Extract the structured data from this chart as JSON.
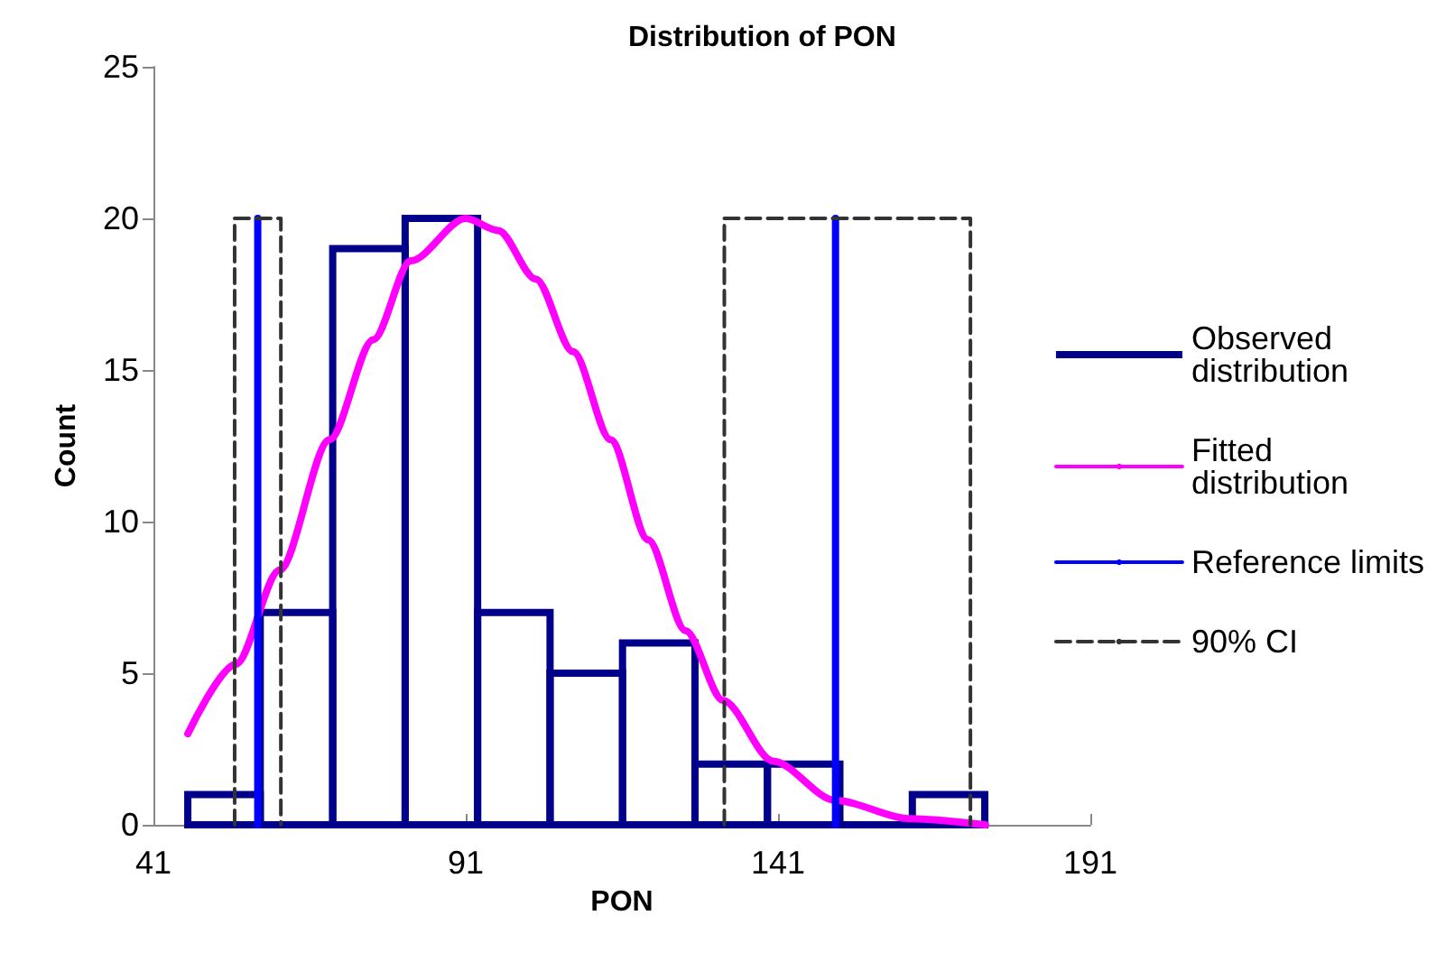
{
  "chart_data": {
    "type": "histogram",
    "title": "Distribution of PON",
    "xlabel": "PON",
    "ylabel": "Count",
    "xlim": [
      41,
      191
    ],
    "xticks": [
      41,
      91,
      141,
      191
    ],
    "ylim": [
      0,
      25
    ],
    "yticks": [
      0,
      5,
      10,
      15,
      20,
      25
    ],
    "grid": false,
    "legend": "right",
    "marker": "none",
    "series": [
      {
        "name": "Observed distribution",
        "color": "#00008b",
        "bins": [
          46.5,
          58.1,
          69.7,
          81.3,
          92.9,
          104.5,
          116.1,
          127.7,
          139.3,
          150.9,
          162.5,
          174.1
        ],
        "values": [
          1,
          7,
          19,
          20,
          7,
          5,
          6,
          2,
          2,
          0,
          1
        ]
      },
      {
        "type": "line",
        "name": "Fitted distribution",
        "color": "#ff00ff",
        "x": [
          46.5,
          54.2,
          61.2,
          69.2,
          76.2,
          82.2,
          91,
          96.2,
          102.2,
          108.2,
          114.2,
          120.2,
          126.2,
          132.2,
          140.2,
          150.2,
          162.2,
          174.2
        ],
        "values": [
          3.0,
          5.3,
          8.4,
          12.7,
          16.0,
          18.6,
          20.0,
          19.6,
          18.0,
          15.6,
          12.7,
          9.4,
          6.4,
          4.1,
          2.1,
          0.8,
          0.2,
          0.0
        ]
      },
      {
        "type": "line",
        "name": "Reference limits",
        "color": "#0000ff",
        "x": [
          57.7,
          57.7,
          null,
          150.2,
          150.2
        ],
        "values": [
          0,
          20,
          null,
          0,
          20
        ]
      },
      {
        "type": "line",
        "name": "90% CI",
        "color": "#333333",
        "line_style": "dashed",
        "x": [
          54.0,
          54.0,
          61.4,
          61.4,
          null,
          132.4,
          132.4,
          171.8,
          171.8
        ],
        "values": [
          0,
          20,
          20,
          0,
          null,
          0,
          20,
          20,
          0
        ]
      }
    ]
  }
}
